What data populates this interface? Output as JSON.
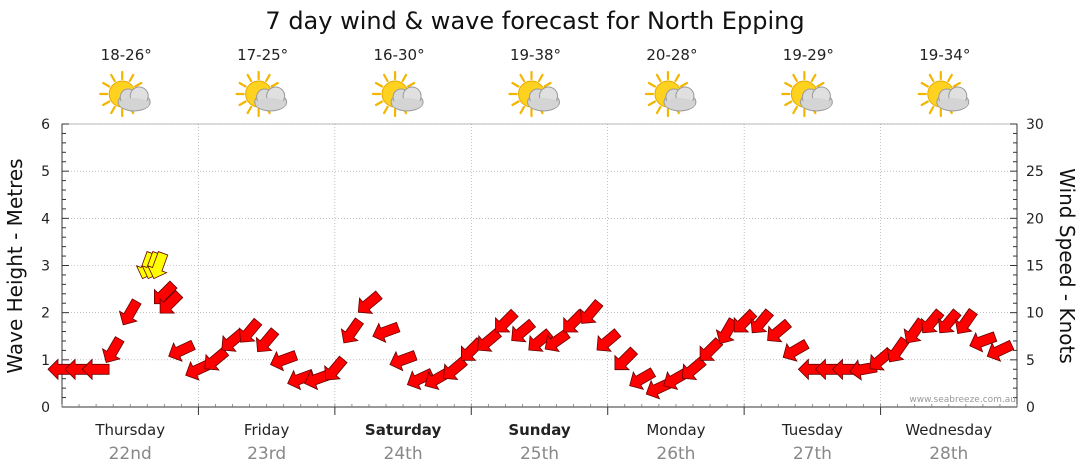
{
  "chart_data": {
    "type": "line",
    "title": "7 day wind & wave forecast for North Epping",
    "ylabel_left": "Wave Height - Metres",
    "ylabel_right": "Wind Speed - Knots",
    "ylim_left": [
      0,
      6
    ],
    "ylim_right": [
      0,
      30
    ],
    "yticks_left": [
      "0",
      "1",
      "2",
      "3",
      "4",
      "5",
      "6"
    ],
    "yticks_right": [
      "0",
      "5",
      "10",
      "15",
      "20",
      "25",
      "30"
    ],
    "grid": true,
    "watermark": "www.seabreeze.com.au",
    "colors": {
      "wind_arrow": "#ff0000",
      "wind_arrow_strong": "#ffff00",
      "arrow_outline": "#660000",
      "grid": "#999999"
    },
    "icon": "partly-cloudy-sun-icon",
    "days": [
      {
        "name": "Thursday",
        "date": "22nd",
        "temp": "18-26°",
        "bold": false
      },
      {
        "name": "Friday",
        "date": "23rd",
        "temp": "17-25°",
        "bold": false
      },
      {
        "name": "Saturday",
        "date": "24th",
        "temp": "16-30°",
        "bold": true
      },
      {
        "name": "Sunday",
        "date": "25th",
        "temp": "19-38°",
        "bold": true
      },
      {
        "name": "Monday",
        "date": "26th",
        "temp": "20-28°",
        "bold": false
      },
      {
        "name": "Tuesday",
        "date": "27th",
        "temp": "19-29°",
        "bold": false
      },
      {
        "name": "Wednesday",
        "date": "28th",
        "temp": "19-34°",
        "bold": false
      }
    ],
    "series": [
      {
        "name": "Wind Speed",
        "unit": "knots",
        "x_unit": "hours from start of Thursday",
        "x": [
          0,
          3,
          6,
          9,
          12,
          15,
          16,
          17,
          18,
          19,
          21,
          24,
          27,
          30,
          33,
          36,
          39,
          42,
          45,
          48,
          51,
          54,
          57,
          60,
          63,
          66,
          69,
          72,
          75,
          78,
          81,
          84,
          87,
          90,
          93,
          96,
          99,
          102,
          105,
          108,
          111,
          114,
          117,
          120,
          123,
          126,
          129,
          132,
          135,
          138,
          141,
          144,
          147,
          150,
          153,
          156,
          159,
          162,
          165
        ],
        "speed": [
          4,
          4,
          4,
          6,
          10,
          15,
          15,
          15,
          12,
          11,
          6,
          4,
          5,
          7,
          8,
          7,
          5,
          3,
          3,
          4,
          8,
          11,
          8,
          5,
          3,
          3,
          4,
          6,
          7,
          9,
          8,
          7,
          7,
          9,
          10,
          7,
          5,
          3,
          2,
          3,
          4,
          6,
          8,
          9,
          9,
          8,
          6,
          4,
          4,
          4,
          4,
          5,
          6,
          8,
          9,
          9,
          9,
          7,
          6
        ],
        "direction_deg": [
          270,
          270,
          270,
          210,
          210,
          200,
          200,
          200,
          225,
          225,
          245,
          245,
          230,
          230,
          220,
          220,
          250,
          250,
          250,
          220,
          215,
          230,
          250,
          250,
          245,
          240,
          230,
          225,
          230,
          225,
          230,
          230,
          235,
          225,
          220,
          230,
          225,
          240,
          245,
          240,
          230,
          225,
          210,
          225,
          220,
          230,
          240,
          270,
          270,
          270,
          260,
          230,
          215,
          215,
          220,
          220,
          215,
          250,
          245
        ]
      }
    ]
  }
}
